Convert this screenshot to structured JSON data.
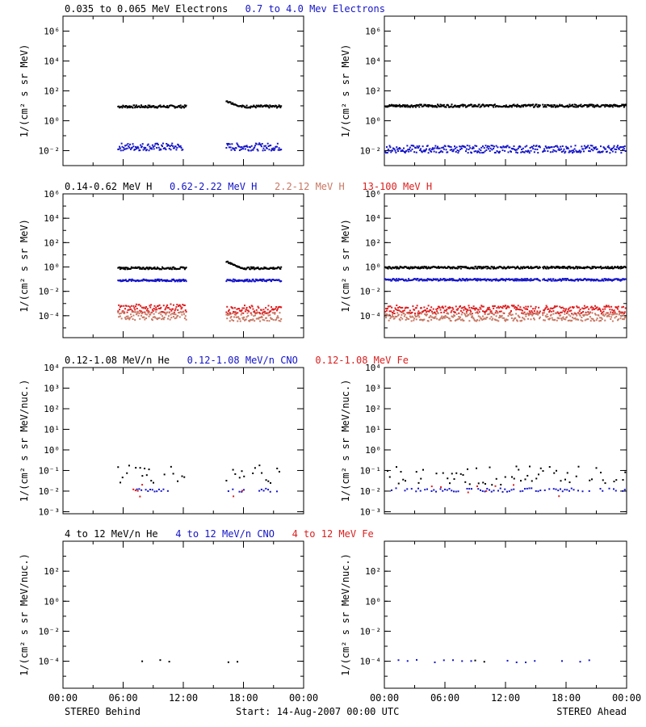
{
  "colors": {
    "black": "#000000",
    "blue": "#1414c8",
    "salmon": "#c87864",
    "red": "#dc1e1e",
    "frame": "#000000"
  },
  "footer": {
    "left_label": "STEREO Behind",
    "center_label": "Start: 14-Aug-2007 00:00 UTC",
    "right_label": "STEREO Ahead"
  },
  "chart_data": [
    {
      "id": "electrons",
      "type": "scatter",
      "title_entries": [
        {
          "text": "0.035 to 0.065 MeV Electrons",
          "color": "black"
        },
        {
          "text": "0.7 to 4.0 Mev Electrons",
          "color": "blue"
        }
      ],
      "ylabel": "1/(cm² s sr MeV)",
      "yscale": "log",
      "ylim_exp": [
        -3,
        7
      ],
      "yticks": [
        {
          "exp": -2,
          "label": "10⁻²"
        },
        {
          "exp": 0,
          "label": "10⁰"
        },
        {
          "exp": 2,
          "label": "10²"
        },
        {
          "exp": 4,
          "label": "10⁴"
        },
        {
          "exp": 6,
          "label": "10⁶"
        }
      ],
      "xlim_hours": [
        0,
        24
      ],
      "panels": [
        {
          "name": "STEREO Behind",
          "segments": [
            {
              "series": "black",
              "from": 5.5,
              "to": 12.3,
              "level_exp": 0.95
            },
            {
              "series": "black",
              "from": 16.3,
              "to": 21.8,
              "level_exp": 0.95,
              "start_bump_exp": 1.3
            },
            {
              "series": "blue",
              "from": 5.5,
              "to": 12.0,
              "level_exp": -1.75
            },
            {
              "series": "blue",
              "from": 16.3,
              "to": 21.8,
              "level_exp": -1.75
            }
          ]
        },
        {
          "name": "STEREO Ahead",
          "segments": [
            {
              "series": "black",
              "from": 0.1,
              "to": 15.5,
              "level_exp": 1.0
            },
            {
              "series": "black",
              "from": 15.7,
              "to": 24.0,
              "level_exp": 1.0
            },
            {
              "series": "blue",
              "from": 0.1,
              "to": 15.5,
              "level_exp": -1.9
            },
            {
              "series": "blue",
              "from": 15.7,
              "to": 24.0,
              "level_exp": -1.9
            }
          ]
        }
      ]
    },
    {
      "id": "protons",
      "type": "scatter",
      "title_entries": [
        {
          "text": "0.14-0.62 MeV H",
          "color": "black"
        },
        {
          "text": "0.62-2.22 MeV H",
          "color": "blue"
        },
        {
          "text": "2.2-12 MeV H",
          "color": "salmon"
        },
        {
          "text": "13-100 MeV H",
          "color": "red"
        }
      ],
      "ylabel": "1/(cm² s sr MeV)",
      "yscale": "log",
      "ylim_exp": [
        -5.8,
        6
      ],
      "yticks": [
        {
          "exp": -4,
          "label": "10⁻⁴"
        },
        {
          "exp": -2,
          "label": "10⁻²"
        },
        {
          "exp": 0,
          "label": "10⁰"
        },
        {
          "exp": 2,
          "label": "10²"
        },
        {
          "exp": 4,
          "label": "10⁴"
        },
        {
          "exp": 6,
          "label": "10⁶"
        }
      ],
      "xlim_hours": [
        0,
        24
      ],
      "panels": [
        {
          "name": "STEREO Behind",
          "segments": [
            {
              "series": "black",
              "from": 5.5,
              "to": 12.3,
              "level_exp": -0.1
            },
            {
              "series": "black",
              "from": 16.3,
              "to": 21.8,
              "level_exp": -0.1,
              "start_bump_exp": 0.45
            },
            {
              "series": "blue",
              "from": 5.5,
              "to": 12.3,
              "level_exp": -1.1
            },
            {
              "series": "blue",
              "from": 16.3,
              "to": 21.8,
              "level_exp": -1.1
            },
            {
              "series": "red",
              "from": 5.5,
              "to": 12.3,
              "level_exp": -3.4
            },
            {
              "series": "salmon",
              "from": 5.5,
              "to": 12.3,
              "level_exp": -4.0
            },
            {
              "series": "red",
              "from": 16.3,
              "to": 21.8,
              "level_exp": -3.5
            },
            {
              "series": "salmon",
              "from": 16.3,
              "to": 21.8,
              "level_exp": -4.1
            }
          ]
        },
        {
          "name": "STEREO Ahead",
          "segments": [
            {
              "series": "black",
              "from": 0.1,
              "to": 15.5,
              "level_exp": -0.05
            },
            {
              "series": "black",
              "from": 15.7,
              "to": 24.0,
              "level_exp": -0.05
            },
            {
              "series": "blue",
              "from": 0.1,
              "to": 15.5,
              "level_exp": -1.05
            },
            {
              "series": "blue",
              "from": 15.7,
              "to": 24.0,
              "level_exp": -1.05
            },
            {
              "series": "red",
              "from": 0.1,
              "to": 15.5,
              "level_exp": -3.5
            },
            {
              "series": "salmon",
              "from": 0.1,
              "to": 15.5,
              "level_exp": -4.1
            },
            {
              "series": "red",
              "from": 15.7,
              "to": 24.0,
              "level_exp": -3.5
            },
            {
              "series": "salmon",
              "from": 15.7,
              "to": 24.0,
              "level_exp": -4.1
            }
          ]
        }
      ]
    },
    {
      "id": "suprathermal-ions",
      "type": "scatter",
      "title_entries": [
        {
          "text": "0.12-1.08 MeV/n He",
          "color": "black"
        },
        {
          "text": "0.12-1.08 MeV/n CNO",
          "color": "blue"
        },
        {
          "text": "0.12-1.08 MeV Fe",
          "color": "red"
        }
      ],
      "ylabel": "1/(cm² s sr MeV/nuc.)",
      "yscale": "log",
      "ylim_exp": [
        -3.1,
        4
      ],
      "yticks": [
        {
          "exp": -3,
          "label": "10⁻³"
        },
        {
          "exp": -2,
          "label": "10⁻²"
        },
        {
          "exp": -1,
          "label": "10⁻¹"
        },
        {
          "exp": 0,
          "label": "10⁰"
        },
        {
          "exp": 1,
          "label": "10¹"
        },
        {
          "exp": 2,
          "label": "10²"
        },
        {
          "exp": 3,
          "label": "10³"
        },
        {
          "exp": 4,
          "label": "10⁴"
        }
      ],
      "xlim_hours": [
        0,
        24
      ],
      "panels": [
        {
          "name": "STEREO Behind",
          "segments": [
            {
              "series": "black",
              "from": 5.5,
              "to": 12.3,
              "level_exp": -1.2,
              "sparse": true
            },
            {
              "series": "black",
              "from": 16.3,
              "to": 21.8,
              "level_exp": -1.2,
              "sparse": true
            },
            {
              "series": "blue",
              "from": 6.5,
              "to": 10.5,
              "level_exp": -1.95,
              "sparse": true
            },
            {
              "series": "red",
              "from": 6.8,
              "to": 8.0,
              "level_exp": -1.95,
              "sparse": true
            },
            {
              "series": "blue",
              "from": 16.5,
              "to": 21.5,
              "level_exp": -1.95,
              "sparse": true
            },
            {
              "series": "red",
              "from": 17.0,
              "to": 18.0,
              "level_exp": -1.95,
              "sparse": true
            }
          ]
        },
        {
          "name": "STEREO Ahead",
          "segments": [
            {
              "series": "black",
              "from": 0.1,
              "to": 24.0,
              "level_exp": -1.25,
              "sparse": true
            },
            {
              "series": "blue",
              "from": 0.5,
              "to": 24.0,
              "level_exp": -1.95,
              "sparse": true
            },
            {
              "series": "red",
              "from": 2.0,
              "to": 22.0,
              "level_exp": -1.95,
              "sparse": true,
              "rare": true
            }
          ]
        }
      ]
    },
    {
      "id": "energetic-ions",
      "type": "scatter",
      "title_entries": [
        {
          "text": "4 to 12 MeV/n He",
          "color": "black"
        },
        {
          "text": "4 to 12 MeV/n CNO",
          "color": "blue"
        },
        {
          "text": "4 to 12 MeV Fe",
          "color": "red"
        }
      ],
      "ylabel": "1/(cm² s sr MeV/nuc.)",
      "yscale": "log",
      "ylim_exp": [
        -5.8,
        4
      ],
      "yticks": [
        {
          "exp": -4,
          "label": "10⁻⁴"
        },
        {
          "exp": -2,
          "label": "10⁻²"
        },
        {
          "exp": 0,
          "label": "10⁰"
        },
        {
          "exp": 2,
          "label": "10²"
        }
      ],
      "xlim_hours": [
        0,
        24
      ],
      "xticks": [
        "00:00",
        "06:00",
        "12:00",
        "18:00",
        "00:00"
      ],
      "panels": [
        {
          "name": "STEREO Behind",
          "segments": [
            {
              "series": "black",
              "from": 7.0,
              "to": 11.0,
              "level_exp": -4.0,
              "rare": true
            },
            {
              "series": "blue",
              "from": 9.0,
              "to": 10.0,
              "level_exp": -4.05,
              "rare": true
            },
            {
              "series": "black",
              "from": 16.5,
              "to": 18.5,
              "level_exp": -4.0,
              "rare": true
            }
          ]
        },
        {
          "name": "STEREO Ahead",
          "segments": [
            {
              "series": "blue",
              "from": 0.5,
              "to": 24.0,
              "level_exp": -4.0,
              "rare": true
            },
            {
              "series": "black",
              "from": 9.0,
              "to": 11.0,
              "level_exp": -3.95,
              "rare": true
            }
          ]
        }
      ]
    }
  ]
}
